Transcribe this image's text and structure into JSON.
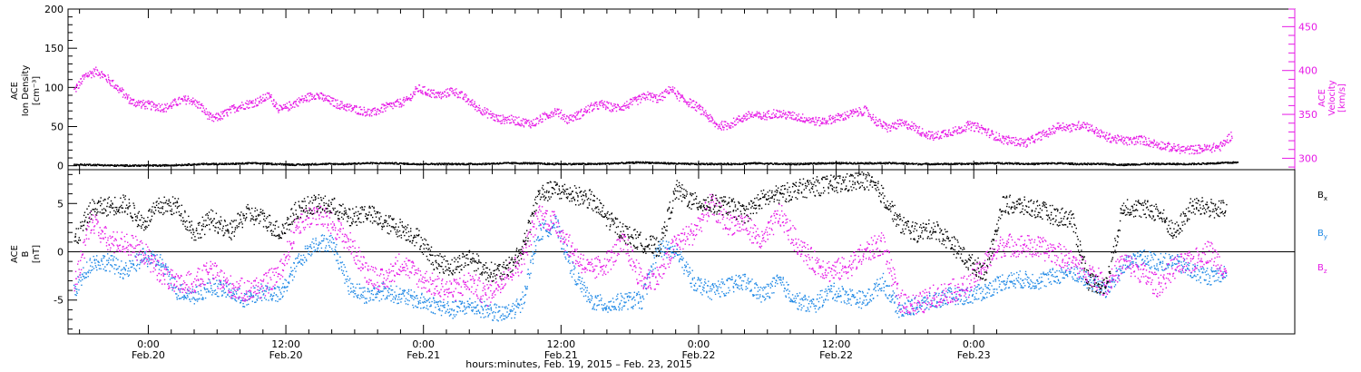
{
  "chart_data": [
    {
      "type": "scatter",
      "panel": "top",
      "left_axis": {
        "label_lines": [
          "ACE",
          "Ion Density",
          "[cm⁻³]"
        ],
        "ticks": [
          0,
          50,
          100,
          150,
          200
        ],
        "tick_labels": [
          "0",
          "50",
          "100",
          "150",
          "200"
        ],
        "range": [
          -5,
          200
        ],
        "color": "#000000"
      },
      "right_axis": {
        "label_lines": [
          "ACE",
          "Velocity",
          "[km/s]"
        ],
        "ticks": [
          300,
          350,
          400,
          450
        ],
        "tick_labels": [
          "300",
          "350",
          "400",
          "450"
        ],
        "range": [
          287,
          470
        ],
        "color": "#e619e6"
      },
      "series": [
        {
          "axis": "left",
          "color": "#000000",
          "x_hours": [
            -6.5,
            -5,
            -3,
            -1,
            1,
            3,
            5,
            7,
            9,
            11,
            13,
            15,
            17,
            19,
            21,
            23,
            25,
            27,
            29,
            31,
            33,
            35,
            37,
            39,
            41,
            43,
            45,
            47,
            49,
            51,
            53,
            55,
            57,
            59,
            61,
            63,
            65,
            67,
            69,
            71,
            73,
            75,
            77,
            79,
            81,
            83,
            85,
            87,
            89,
            91,
            93,
            95
          ],
          "values": [
            2,
            2,
            1,
            1,
            1,
            2,
            3,
            3,
            4,
            3,
            2,
            3,
            3,
            4,
            4,
            3,
            3,
            3,
            3,
            4,
            4,
            3,
            3,
            3,
            4,
            5,
            4,
            3,
            3,
            3,
            4,
            3,
            3,
            4,
            4,
            4,
            4,
            3,
            3,
            3,
            4,
            4,
            3,
            4,
            3,
            3,
            2,
            3,
            3,
            3,
            4,
            5
          ]
        },
        {
          "axis": "right",
          "color": "#e619e6",
          "x_hours": [
            -6.5,
            -5.5,
            -4.5,
            -3.5,
            -2.5,
            -1.5,
            -0.5,
            0.5,
            1.5,
            2.5,
            3.5,
            4.5,
            5.5,
            6.5,
            7.5,
            8.5,
            9.5,
            10.5,
            11.5,
            12.5,
            13.5,
            14.5,
            15.5,
            16.5,
            17.5,
            18.5,
            19.5,
            20.5,
            21.5,
            22.5,
            23.5,
            24.5,
            25.5,
            26.5,
            27.5,
            28.5,
            29.5,
            30.5,
            31.5,
            32.5,
            33.5,
            34.5,
            35.5,
            36.5,
            37.5,
            38.5,
            39.5,
            40.5,
            41.5,
            42.5,
            43.5,
            44.5,
            45.5,
            46.5,
            47.5,
            48.5,
            49.5,
            50.5,
            51.5,
            52.5,
            53.5,
            54.5,
            55.5,
            56.5,
            57.5,
            58.5,
            59.5,
            60.5,
            61.5,
            62.5,
            63.5,
            64.5,
            65.5,
            66.5,
            67.5,
            68.5,
            69.5,
            70.5,
            71.5,
            72.5,
            73.5,
            74.5,
            75.5,
            76.5,
            77.5,
            78.5,
            79.5,
            80.5,
            81.5,
            82.5,
            83.5,
            84.5,
            85.5,
            86.5,
            87.5,
            88.5,
            89.5,
            90.5,
            91.5,
            92.5,
            93.5,
            94.5
          ],
          "values": [
            378,
            395,
            400,
            390,
            378,
            365,
            362,
            360,
            358,
            365,
            368,
            360,
            345,
            350,
            358,
            362,
            365,
            372,
            355,
            362,
            368,
            373,
            368,
            362,
            358,
            355,
            352,
            358,
            362,
            366,
            380,
            375,
            372,
            378,
            370,
            360,
            352,
            345,
            345,
            342,
            340,
            348,
            355,
            345,
            350,
            358,
            362,
            358,
            360,
            366,
            372,
            368,
            380,
            368,
            362,
            352,
            338,
            338,
            345,
            350,
            348,
            352,
            350,
            348,
            345,
            342,
            345,
            348,
            352,
            355,
            342,
            335,
            340,
            338,
            330,
            325,
            330,
            332,
            338,
            335,
            328,
            322,
            320,
            318,
            325,
            330,
            338,
            335,
            340,
            332,
            325,
            322,
            320,
            322,
            318,
            315,
            312,
            310,
            311,
            312,
            314,
            328
          ]
        }
      ]
    },
    {
      "type": "scatter",
      "panel": "bottom",
      "left_axis": {
        "label_lines": [
          "ACE",
          "B",
          "[nT]"
        ],
        "ticks": [
          -5,
          0,
          5
        ],
        "tick_labels": [
          "-5",
          "0",
          "5"
        ],
        "range": [
          -8.5,
          8.5
        ],
        "color": "#000000"
      },
      "legend": [
        {
          "main": "B",
          "sub": "x",
          "color": "#000000"
        },
        {
          "main": "B",
          "sub": "y",
          "color": "#1e88e5"
        },
        {
          "main": "B",
          "sub": "z",
          "color": "#e619e6"
        }
      ],
      "series": [
        {
          "name": "Bx",
          "color": "#000000",
          "x_hours": [
            -6.5,
            -5,
            -3.5,
            -2,
            -0.5,
            1,
            2.5,
            4,
            5.5,
            7,
            8.5,
            10,
            11.5,
            13,
            14.5,
            16,
            17.5,
            19,
            20.5,
            22,
            23.5,
            25,
            26.5,
            28,
            29.5,
            31,
            32.5,
            34,
            35.5,
            37,
            38.5,
            40,
            41.5,
            43,
            44.5,
            46,
            47.5,
            49,
            50.5,
            52,
            53.5,
            55,
            56.5,
            58,
            59.5,
            61,
            62.5,
            64,
            65.5,
            67,
            68.5,
            70,
            71.5,
            73,
            74.5,
            76,
            77.5,
            79,
            80.5,
            82,
            83.5,
            85,
            86.5,
            88,
            89.5,
            91,
            92.5,
            94
          ],
          "values": [
            1,
            4.5,
            4.8,
            5,
            3,
            4.8,
            4.8,
            2,
            3.5,
            2,
            4,
            3.5,
            2,
            4.5,
            5,
            4.8,
            3.5,
            4.2,
            3,
            2.5,
            1.5,
            -1,
            -1.5,
            -0.5,
            -2,
            -2,
            0,
            6,
            6.5,
            6,
            5.5,
            3.5,
            2,
            1,
            0.5,
            6.5,
            5.2,
            5,
            4.8,
            4,
            5.5,
            6,
            6.5,
            6.8,
            7,
            7.2,
            7.5,
            6,
            3,
            2,
            2.5,
            1,
            -1,
            -2,
            5,
            4.8,
            4.5,
            3.8,
            3.5,
            -3,
            -3.5,
            4.8,
            4.5,
            4.2,
            2,
            4.8,
            4.6,
            4.3
          ]
        },
        {
          "name": "By",
          "color": "#1e88e5",
          "x_hours": [
            -6.5,
            -5,
            -3.5,
            -2,
            -0.5,
            1,
            2.5,
            4,
            5.5,
            7,
            8.5,
            10,
            11.5,
            13,
            14.5,
            16,
            17.5,
            19,
            20.5,
            22,
            23.5,
            25,
            26.5,
            28,
            29.5,
            31,
            32.5,
            34,
            35.5,
            37,
            38.5,
            40,
            41.5,
            43,
            44.5,
            46,
            47.5,
            49,
            50.5,
            52,
            53.5,
            55,
            56.5,
            58,
            59.5,
            61,
            62.5,
            64,
            65.5,
            67,
            68.5,
            70,
            71.5,
            73,
            74.5,
            76,
            77.5,
            79,
            80.5,
            82,
            83.5,
            85,
            86.5,
            88,
            89.5,
            91,
            92.5,
            94
          ],
          "values": [
            -4,
            -1,
            -1,
            -2,
            -0.5,
            -1,
            -4,
            -4.5,
            -3.5,
            -4,
            -5,
            -4,
            -4.5,
            -1,
            1,
            1,
            -3.5,
            -4.5,
            -4,
            -4.5,
            -5,
            -5.5,
            -6,
            -5.5,
            -6,
            -6.5,
            -5.5,
            2,
            3,
            -2,
            -5,
            -5.5,
            -5,
            -5,
            0.5,
            0,
            -3,
            -4,
            -3.5,
            -3,
            -4.5,
            -3,
            -5,
            -5.5,
            -4,
            -4.5,
            -5,
            -3,
            -6,
            -5.5,
            -5,
            -4.5,
            -4.5,
            -4,
            -3,
            -2.8,
            -3,
            -2.5,
            -2,
            -3,
            -4,
            -1.5,
            -0.5,
            -1,
            -1,
            -2,
            -2.5,
            -2
          ]
        },
        {
          "name": "Bz",
          "color": "#e619e6",
          "x_hours": [
            -6.5,
            -5,
            -3.5,
            -2,
            -0.5,
            1,
            2.5,
            4,
            5.5,
            7,
            8.5,
            10,
            11.5,
            13,
            14.5,
            16,
            17.5,
            19,
            20.5,
            22,
            23.5,
            25,
            26.5,
            28,
            29.5,
            31,
            32.5,
            34,
            35.5,
            37,
            38.5,
            40,
            41.5,
            43,
            44.5,
            46,
            47.5,
            49,
            50.5,
            52,
            53.5,
            55,
            56.5,
            58,
            59.5,
            61,
            62.5,
            64,
            65.5,
            67,
            68.5,
            70,
            71.5,
            73,
            74.5,
            76,
            77.5,
            79,
            80.5,
            82,
            83.5,
            85,
            86.5,
            88,
            89.5,
            91,
            92.5,
            94
          ],
          "values": [
            -3.5,
            3.5,
            1,
            1,
            0,
            -2,
            -3.5,
            -3,
            -2,
            -3.5,
            -4,
            -3.5,
            -2,
            3,
            4,
            3,
            1,
            -2,
            -3,
            -1,
            -2.5,
            -3.5,
            -4,
            -3,
            -4.5,
            -2.5,
            -1,
            4,
            3,
            0,
            -2,
            -1,
            1,
            -3,
            -2.5,
            1,
            2,
            5,
            3,
            3,
            1,
            4,
            1,
            -1,
            -2,
            -1.5,
            0,
            1,
            -5,
            -5.5,
            -4.5,
            -4,
            -3.5,
            -1,
            0.8,
            0.7,
            0.5,
            0,
            -1,
            -2,
            -3.5,
            -1,
            -2,
            -3.5,
            -1.5,
            -1,
            0.2,
            -2
          ]
        }
      ]
    },
    {
      "type": "time_axis",
      "x_range_hours": [
        -7,
        100
      ],
      "ticks_hours": [
        0,
        12,
        24,
        36,
        48,
        60,
        72
      ],
      "tick_time_labels": [
        "0:00",
        "12:00",
        "0:00",
        "12:00",
        "0:00",
        "12:00",
        "0:00"
      ],
      "tick_date_labels": [
        "Feb.20",
        "Feb.20",
        "Feb.21",
        "Feb.21",
        "Feb.22",
        "Feb.22",
        "Feb.23"
      ],
      "minor_ticks_hours": [
        -6,
        2,
        4,
        6,
        8,
        10,
        14,
        16,
        18,
        20,
        22,
        26,
        28,
        30,
        32,
        34,
        38,
        40,
        42,
        44,
        46,
        50,
        52,
        54,
        56,
        58,
        62,
        64,
        66,
        68,
        70,
        74
      ],
      "xlabel": "hours:minutes, Feb. 19, 2015 – Feb. 23, 2015"
    }
  ]
}
